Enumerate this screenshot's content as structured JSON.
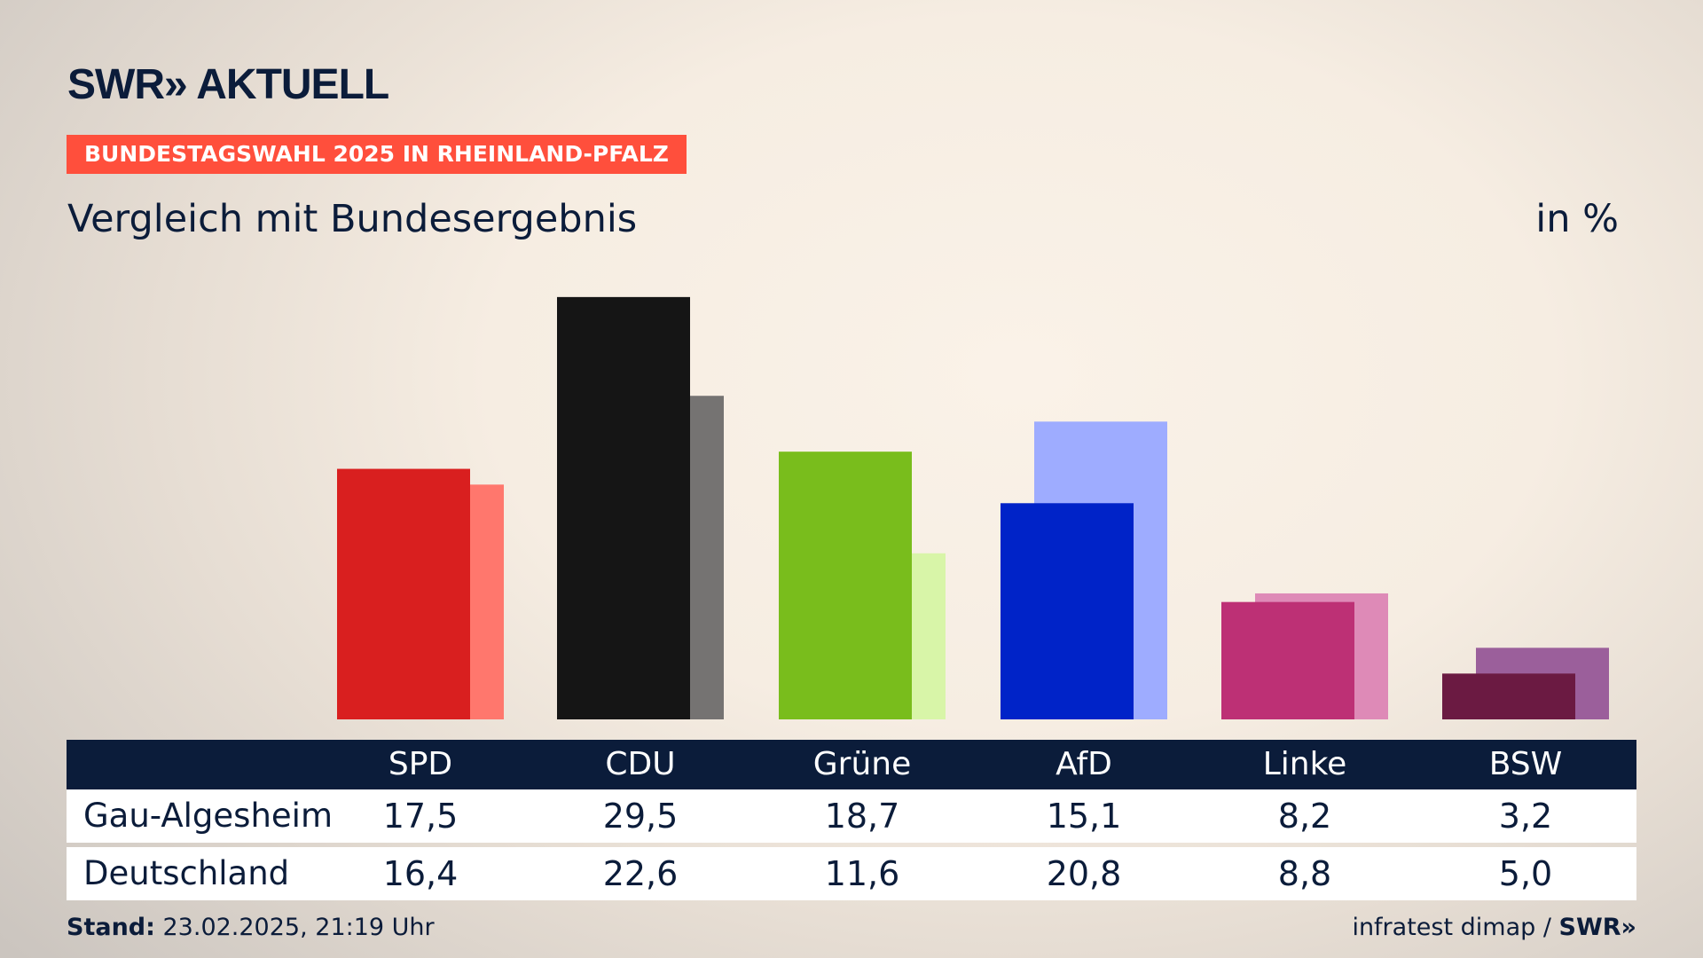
{
  "header": {
    "logo": "SWR» AKTUELL",
    "banner": "BUNDESTAGSWAHL 2025 IN RHEINLAND-PFALZ",
    "subtitle": "Vergleich mit Bundesergebnis",
    "unit": "in %"
  },
  "chart_data": {
    "type": "bar",
    "title": "Vergleich mit Bundesergebnis",
    "ylabel": "in %",
    "categories": [
      "SPD",
      "CDU",
      "Grüne",
      "AfD",
      "Linke",
      "BSW"
    ],
    "series": [
      {
        "name": "Gau-Algesheim",
        "values": [
          "17,5",
          "29,5",
          "18,7",
          "15,1",
          "8,2",
          "3,2"
        ],
        "colors": [
          "#d91f1f",
          "#151515",
          "#79bd1c",
          "#0023c8",
          "#bd3075",
          "#6b1a42"
        ]
      },
      {
        "name": "Deutschland",
        "values": [
          "16,4",
          "22,6",
          "11,6",
          "20,8",
          "8,8",
          "5,0"
        ],
        "colors": [
          "#ff776d",
          "#757372",
          "#d8f5a8",
          "#9eacff",
          "#de8ab7",
          "#9b5f9b"
        ]
      }
    ]
  },
  "footer": {
    "stand_label": "Stand:",
    "stand_value": " 23.02.2025, 21:19 Uhr",
    "source": "infratest dimap / ",
    "source_logo": "SWR»"
  }
}
